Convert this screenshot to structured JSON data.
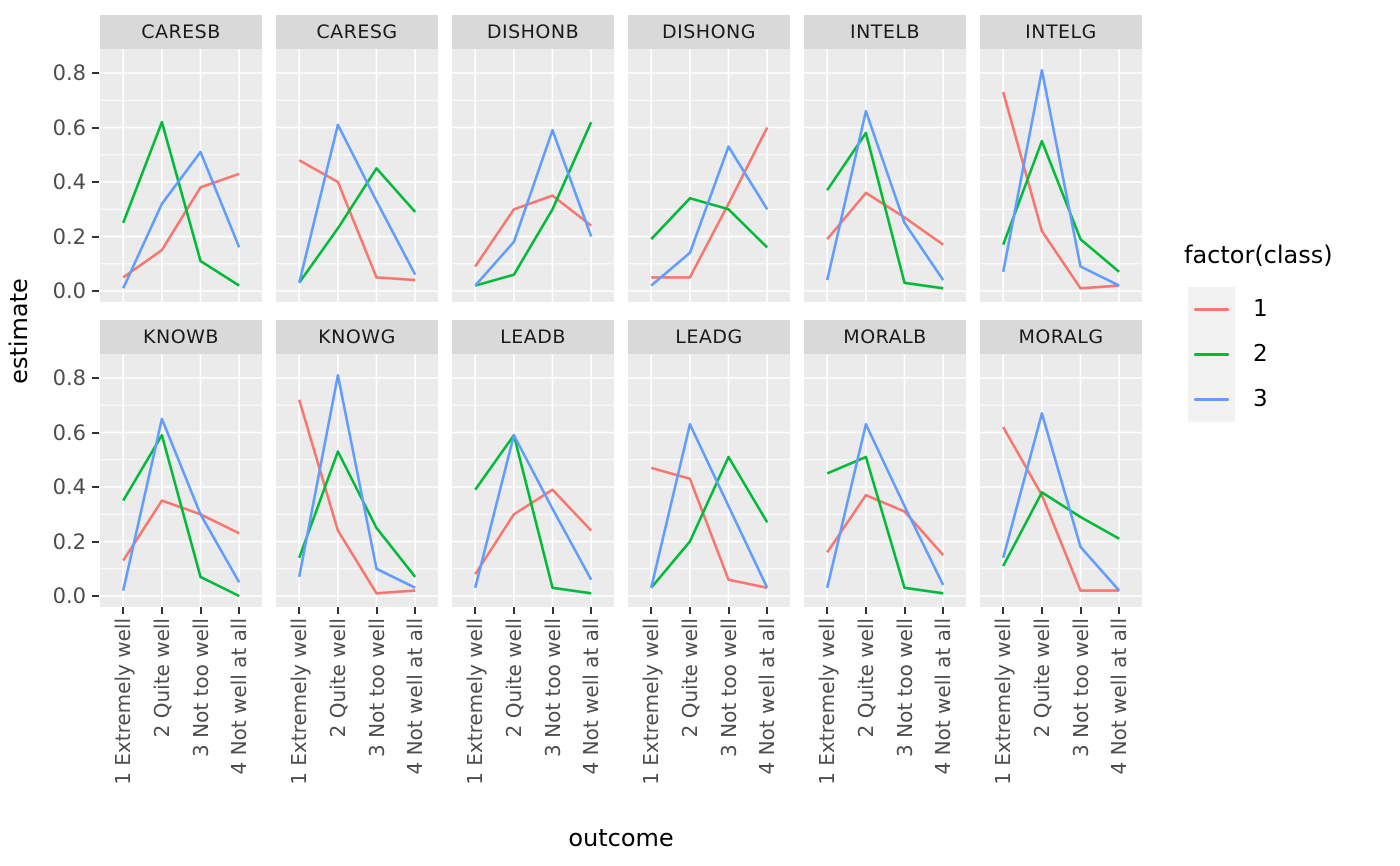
{
  "figure": {
    "x_axis_title": "outcome",
    "y_axis_title": "estimate",
    "y_tick_labels": [
      "0.0",
      "0.2",
      "0.4",
      "0.6",
      "0.8"
    ]
  },
  "legend": {
    "title": "factor(class)",
    "position": "right",
    "entries": [
      {
        "label": "1",
        "color": "#F8766D"
      },
      {
        "label": "2",
        "color": "#00BA38"
      },
      {
        "label": "3",
        "color": "#619CFF"
      }
    ]
  },
  "theme": {
    "panel_background": "#EBEBEB",
    "strip_background": "#D9D9D9",
    "grid_color": "#FFFFFF",
    "tick_text_color": "#4D4D4D",
    "tick_mark_color": "#333333"
  },
  "chart_data": {
    "type": "line",
    "title": "",
    "xlabel": "outcome",
    "ylabel": "estimate",
    "legend_title": "factor(class)",
    "legend_position": "right",
    "grid": true,
    "ylim": [
      0,
      0.8
    ],
    "y_ticks": [
      0.0,
      0.2,
      0.4,
      0.6,
      0.8
    ],
    "y_minor_ticks": [
      0.1,
      0.3,
      0.5,
      0.7
    ],
    "categories": [
      "1 Extremely well",
      "2 Quite well",
      "3 Not too well",
      "4 Not well at all"
    ],
    "series_names": [
      "1",
      "2",
      "3"
    ],
    "colors": {
      "1": "#F8766D",
      "2": "#00BA38",
      "3": "#619CFF"
    },
    "facet_layout": {
      "rows": 2,
      "cols": 6
    },
    "facets": [
      {
        "name": "CARESB",
        "series": [
          {
            "name": "1",
            "values": [
              0.05,
              0.15,
              0.38,
              0.43
            ]
          },
          {
            "name": "2",
            "values": [
              0.25,
              0.62,
              0.11,
              0.02
            ]
          },
          {
            "name": "3",
            "values": [
              0.01,
              0.32,
              0.51,
              0.16
            ]
          }
        ]
      },
      {
        "name": "CARESG",
        "series": [
          {
            "name": "1",
            "values": [
              0.48,
              0.4,
              0.05,
              0.04
            ]
          },
          {
            "name": "2",
            "values": [
              0.03,
              0.23,
              0.45,
              0.29
            ]
          },
          {
            "name": "3",
            "values": [
              0.03,
              0.61,
              0.33,
              0.06
            ]
          }
        ]
      },
      {
        "name": "DISHONB",
        "series": [
          {
            "name": "1",
            "values": [
              0.09,
              0.3,
              0.35,
              0.24
            ]
          },
          {
            "name": "2",
            "values": [
              0.02,
              0.06,
              0.3,
              0.62
            ]
          },
          {
            "name": "3",
            "values": [
              0.02,
              0.18,
              0.59,
              0.2
            ]
          }
        ]
      },
      {
        "name": "DISHONG",
        "series": [
          {
            "name": "1",
            "values": [
              0.05,
              0.05,
              0.32,
              0.6
            ]
          },
          {
            "name": "2",
            "values": [
              0.19,
              0.34,
              0.3,
              0.16
            ]
          },
          {
            "name": "3",
            "values": [
              0.02,
              0.14,
              0.53,
              0.3
            ]
          }
        ]
      },
      {
        "name": "INTELB",
        "series": [
          {
            "name": "1",
            "values": [
              0.19,
              0.36,
              0.27,
              0.17
            ]
          },
          {
            "name": "2",
            "values": [
              0.37,
              0.58,
              0.03,
              0.01
            ]
          },
          {
            "name": "3",
            "values": [
              0.04,
              0.66,
              0.25,
              0.04
            ]
          }
        ]
      },
      {
        "name": "INTELG",
        "series": [
          {
            "name": "1",
            "values": [
              0.73,
              0.22,
              0.01,
              0.02
            ]
          },
          {
            "name": "2",
            "values": [
              0.17,
              0.55,
              0.19,
              0.07
            ]
          },
          {
            "name": "3",
            "values": [
              0.07,
              0.81,
              0.09,
              0.02
            ]
          }
        ]
      },
      {
        "name": "KNOWB",
        "series": [
          {
            "name": "1",
            "values": [
              0.13,
              0.35,
              0.3,
              0.23
            ]
          },
          {
            "name": "2",
            "values": [
              0.35,
              0.59,
              0.07,
              0.0
            ]
          },
          {
            "name": "3",
            "values": [
              0.02,
              0.65,
              0.3,
              0.05
            ]
          }
        ]
      },
      {
        "name": "KNOWG",
        "series": [
          {
            "name": "1",
            "values": [
              0.72,
              0.24,
              0.01,
              0.02
            ]
          },
          {
            "name": "2",
            "values": [
              0.14,
              0.53,
              0.25,
              0.07
            ]
          },
          {
            "name": "3",
            "values": [
              0.07,
              0.81,
              0.1,
              0.03
            ]
          }
        ]
      },
      {
        "name": "LEADB",
        "series": [
          {
            "name": "1",
            "values": [
              0.08,
              0.3,
              0.39,
              0.24
            ]
          },
          {
            "name": "2",
            "values": [
              0.39,
              0.59,
              0.03,
              0.01
            ]
          },
          {
            "name": "3",
            "values": [
              0.03,
              0.59,
              0.32,
              0.06
            ]
          }
        ]
      },
      {
        "name": "LEADG",
        "series": [
          {
            "name": "1",
            "values": [
              0.47,
              0.43,
              0.06,
              0.03
            ]
          },
          {
            "name": "2",
            "values": [
              0.03,
              0.2,
              0.51,
              0.27
            ]
          },
          {
            "name": "3",
            "values": [
              0.03,
              0.63,
              0.33,
              0.03
            ]
          }
        ]
      },
      {
        "name": "MORALB",
        "series": [
          {
            "name": "1",
            "values": [
              0.16,
              0.37,
              0.31,
              0.15
            ]
          },
          {
            "name": "2",
            "values": [
              0.45,
              0.51,
              0.03,
              0.01
            ]
          },
          {
            "name": "3",
            "values": [
              0.03,
              0.63,
              0.33,
              0.04
            ]
          }
        ]
      },
      {
        "name": "MORALG",
        "series": [
          {
            "name": "1",
            "values": [
              0.62,
              0.37,
              0.02,
              0.02
            ]
          },
          {
            "name": "2",
            "values": [
              0.11,
              0.38,
              0.29,
              0.21
            ]
          },
          {
            "name": "3",
            "values": [
              0.14,
              0.67,
              0.18,
              0.02
            ]
          }
        ]
      }
    ]
  }
}
